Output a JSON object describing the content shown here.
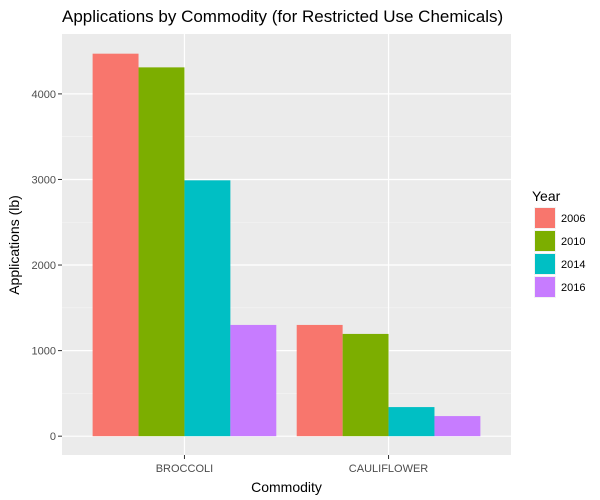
{
  "chart_data": {
    "type": "bar",
    "title": "Applications by Commodity (for Restricted Use Chemicals)",
    "xlabel": "Commodity",
    "ylabel": "Applications (lb)",
    "categories": [
      "BROCCOLI",
      "CAULIFLOWER"
    ],
    "series": [
      {
        "name": "2006",
        "color": "#F8766D",
        "values": [
          4470,
          1300
        ]
      },
      {
        "name": "2010",
        "color": "#7CAE00",
        "values": [
          4310,
          1195
        ]
      },
      {
        "name": "2014",
        "color": "#00BFC4",
        "values": [
          2990,
          340
        ]
      },
      {
        "name": "2016",
        "color": "#C77CFF",
        "values": [
          1300,
          235
        ]
      }
    ],
    "ylim": [
      -220,
      4700
    ],
    "yticks": [
      0,
      1000,
      2000,
      3000,
      4000
    ],
    "legend": {
      "title": "Year",
      "placement": "right"
    },
    "grid": true,
    "panel_background": "#EBEBEB"
  }
}
